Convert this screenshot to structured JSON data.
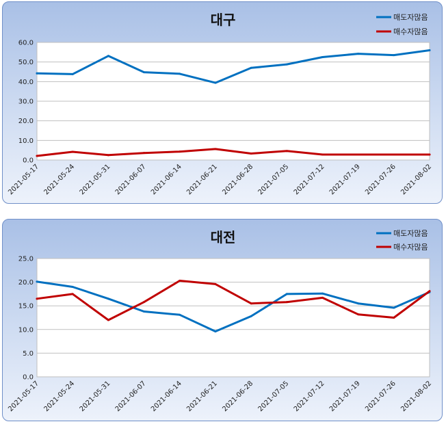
{
  "chart_data": [
    {
      "type": "line",
      "title": "대구",
      "categories": [
        "2021-05-17",
        "2021-05-24",
        "2021-05-31",
        "2021-06-07",
        "2021-06-14",
        "2021-06-21",
        "2021-06-28",
        "2021-07-05",
        "2021-07-12",
        "2021-07-19",
        "2021-07-26",
        "2021-08-02"
      ],
      "ylim": [
        0,
        60
      ],
      "yticks": [
        "0.0",
        "10.0",
        "20.0",
        "30.0",
        "40.0",
        "50.0",
        "60.0"
      ],
      "grid": true,
      "legend_position": "top-right",
      "series": [
        {
          "name": "매도자많음",
          "color": "#0070c0",
          "values": [
            44.2,
            43.8,
            53.1,
            44.8,
            44.0,
            39.4,
            47.0,
            48.8,
            52.5,
            54.2,
            53.5,
            56.0
          ]
        },
        {
          "name": "매수자많음",
          "color": "#c00000",
          "values": [
            2.1,
            4.2,
            2.5,
            3.6,
            4.3,
            5.6,
            3.3,
            4.6,
            2.8,
            2.8,
            2.8,
            2.8
          ]
        }
      ]
    },
    {
      "type": "line",
      "title": "대전",
      "categories": [
        "2021-05-17",
        "2021-05-24",
        "2021-05-31",
        "2021-06-07",
        "2021-06-14",
        "2021-06-21",
        "2021-06-28",
        "2021-07-05",
        "2021-07-12",
        "2021-07-19",
        "2021-07-26",
        "2021-08-02"
      ],
      "ylim": [
        0,
        25
      ],
      "yticks": [
        "0.0",
        "5.0",
        "10.0",
        "15.0",
        "20.0",
        "25.0"
      ],
      "grid": true,
      "legend_position": "top-right",
      "series": [
        {
          "name": "매도자많음",
          "color": "#0070c0",
          "values": [
            20.1,
            19.0,
            16.5,
            13.8,
            13.1,
            9.6,
            12.8,
            17.5,
            17.6,
            15.5,
            14.6,
            17.9
          ]
        },
        {
          "name": "매수자많음",
          "color": "#c00000",
          "values": [
            16.5,
            17.5,
            12.0,
            15.8,
            20.3,
            19.6,
            15.5,
            15.8,
            16.7,
            13.2,
            12.5,
            18.1
          ]
        }
      ]
    }
  ]
}
